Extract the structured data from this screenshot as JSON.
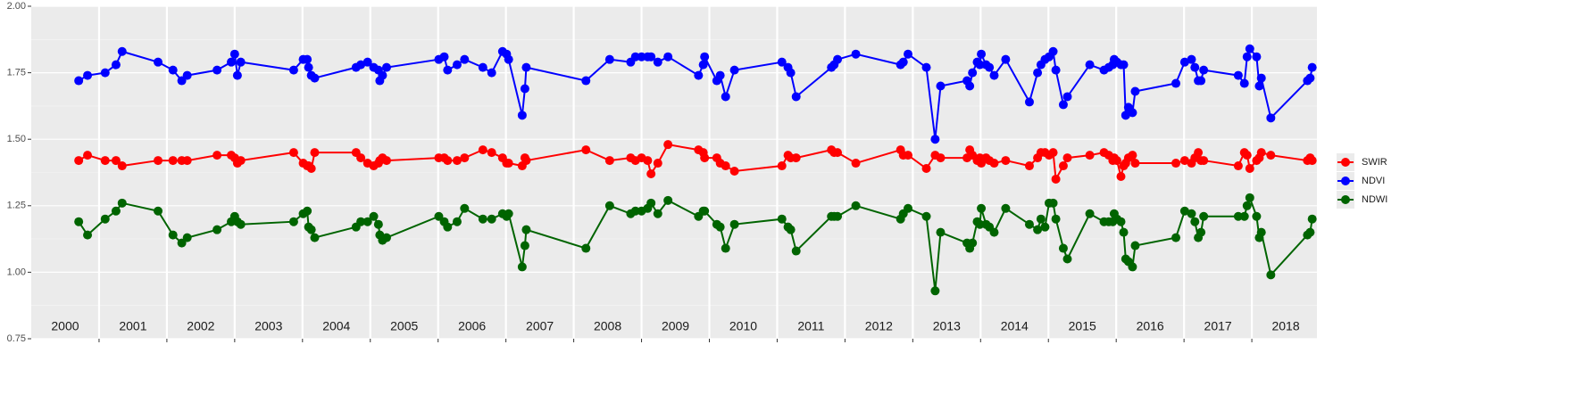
{
  "chart_data": {
    "type": "line",
    "x": [
      2000.7,
      2000.83,
      2001.09,
      2001.25,
      2001.34,
      2001.87,
      2002.09,
      2002.22,
      2002.3,
      2002.74,
      2002.95,
      2003.0,
      2003.04,
      2003.09,
      2003.87,
      2004.01,
      2004.07,
      2004.09,
      2004.13,
      2004.18,
      2004.79,
      2004.86,
      2004.96,
      2005.05,
      2005.12,
      2005.14,
      2005.18,
      2005.24,
      2006.01,
      2006.09,
      2006.14,
      2006.28,
      2006.39,
      2006.66,
      2006.79,
      2006.95,
      2007.01,
      2007.04,
      2007.24,
      2007.28,
      2007.3,
      2008.18,
      2008.53,
      2008.84,
      2008.91,
      2009.0,
      2009.09,
      2009.14,
      2009.24,
      2009.39,
      2009.84,
      2009.91,
      2009.93,
      2010.11,
      2010.16,
      2010.24,
      2010.37,
      2011.07,
      2011.16,
      2011.2,
      2011.28,
      2011.8,
      2011.84,
      2011.89,
      2012.16,
      2012.82,
      2012.86,
      2012.93,
      2013.2,
      2013.33,
      2013.41,
      2013.8,
      2013.84,
      2013.88,
      2013.95,
      2013.99,
      2014.01,
      2014.08,
      2014.13,
      2014.2,
      2014.37,
      2014.72,
      2014.84,
      2014.89,
      2014.95,
      2015.01,
      2015.07,
      2015.11,
      2015.22,
      2015.28,
      2015.61,
      2015.82,
      2015.89,
      2015.95,
      2015.97,
      2016.01,
      2016.07,
      2016.11,
      2016.14,
      2016.18,
      2016.24,
      2016.28,
      2016.88,
      2017.01,
      2017.11,
      2017.16,
      2017.21,
      2017.25,
      2017.29,
      2017.8,
      2017.89,
      2017.93,
      2017.97,
      2018.07,
      2018.11,
      2018.14,
      2018.28,
      2018.82,
      2018.86,
      2018.89
    ],
    "series": [
      {
        "name": "SWIR",
        "color": "#ff0000",
        "values": [
          1.42,
          1.44,
          1.42,
          1.42,
          1.4,
          1.42,
          1.42,
          1.42,
          1.42,
          1.44,
          1.44,
          1.43,
          1.41,
          1.42,
          1.45,
          1.41,
          1.4,
          1.4,
          1.39,
          1.45,
          1.45,
          1.43,
          1.41,
          1.4,
          1.41,
          1.42,
          1.43,
          1.42,
          1.43,
          1.43,
          1.42,
          1.42,
          1.43,
          1.46,
          1.45,
          1.43,
          1.41,
          1.41,
          1.4,
          1.43,
          1.42,
          1.46,
          1.42,
          1.43,
          1.42,
          1.43,
          1.42,
          1.37,
          1.41,
          1.48,
          1.46,
          1.45,
          1.43,
          1.43,
          1.41,
          1.4,
          1.38,
          1.4,
          1.44,
          1.43,
          1.43,
          1.46,
          1.45,
          1.45,
          1.41,
          1.46,
          1.44,
          1.44,
          1.39,
          1.44,
          1.43,
          1.43,
          1.46,
          1.44,
          1.42,
          1.43,
          1.41,
          1.43,
          1.42,
          1.41,
          1.42,
          1.4,
          1.43,
          1.45,
          1.45,
          1.44,
          1.45,
          1.35,
          1.4,
          1.43,
          1.44,
          1.45,
          1.44,
          1.42,
          1.43,
          1.42,
          1.36,
          1.4,
          1.41,
          1.43,
          1.44,
          1.41,
          1.41,
          1.42,
          1.41,
          1.43,
          1.45,
          1.42,
          1.42,
          1.4,
          1.45,
          1.44,
          1.39,
          1.42,
          1.43,
          1.45,
          1.44,
          1.42,
          1.43,
          1.42
        ]
      },
      {
        "name": "NDVI",
        "color": "#0000ff",
        "values": [
          1.72,
          1.74,
          1.75,
          1.78,
          1.83,
          1.79,
          1.76,
          1.72,
          1.74,
          1.76,
          1.79,
          1.82,
          1.74,
          1.79,
          1.76,
          1.8,
          1.8,
          1.77,
          1.74,
          1.73,
          1.77,
          1.78,
          1.79,
          1.77,
          1.76,
          1.72,
          1.74,
          1.77,
          1.8,
          1.81,
          1.76,
          1.78,
          1.8,
          1.77,
          1.75,
          1.83,
          1.82,
          1.8,
          1.59,
          1.69,
          1.77,
          1.72,
          1.8,
          1.79,
          1.81,
          1.81,
          1.81,
          1.81,
          1.79,
          1.81,
          1.74,
          1.78,
          1.81,
          1.72,
          1.74,
          1.66,
          1.76,
          1.79,
          1.77,
          1.75,
          1.66,
          1.77,
          1.78,
          1.8,
          1.82,
          1.78,
          1.79,
          1.82,
          1.77,
          1.5,
          1.7,
          1.72,
          1.7,
          1.75,
          1.79,
          1.78,
          1.82,
          1.78,
          1.77,
          1.74,
          1.8,
          1.64,
          1.75,
          1.78,
          1.8,
          1.81,
          1.83,
          1.76,
          1.63,
          1.66,
          1.78,
          1.76,
          1.77,
          1.78,
          1.8,
          1.79,
          1.78,
          1.78,
          1.59,
          1.62,
          1.6,
          1.68,
          1.71,
          1.79,
          1.8,
          1.77,
          1.72,
          1.72,
          1.76,
          1.74,
          1.71,
          1.81,
          1.84,
          1.81,
          1.7,
          1.73,
          1.58,
          1.72,
          1.73,
          1.77
        ]
      },
      {
        "name": "NDWI",
        "color": "#006400",
        "values": [
          1.19,
          1.14,
          1.2,
          1.23,
          1.26,
          1.23,
          1.14,
          1.11,
          1.13,
          1.16,
          1.19,
          1.21,
          1.19,
          1.18,
          1.19,
          1.22,
          1.23,
          1.17,
          1.16,
          1.13,
          1.17,
          1.19,
          1.19,
          1.21,
          1.18,
          1.14,
          1.12,
          1.13,
          1.21,
          1.19,
          1.17,
          1.19,
          1.24,
          1.2,
          1.2,
          1.22,
          1.21,
          1.22,
          1.02,
          1.1,
          1.16,
          1.09,
          1.25,
          1.22,
          1.23,
          1.23,
          1.24,
          1.26,
          1.22,
          1.27,
          1.21,
          1.23,
          1.23,
          1.18,
          1.17,
          1.09,
          1.18,
          1.2,
          1.17,
          1.16,
          1.08,
          1.21,
          1.21,
          1.21,
          1.25,
          1.2,
          1.22,
          1.24,
          1.21,
          0.93,
          1.15,
          1.11,
          1.09,
          1.11,
          1.19,
          1.18,
          1.24,
          1.18,
          1.17,
          1.15,
          1.24,
          1.18,
          1.16,
          1.2,
          1.17,
          1.26,
          1.26,
          1.2,
          1.09,
          1.05,
          1.22,
          1.19,
          1.19,
          1.19,
          1.22,
          1.2,
          1.19,
          1.15,
          1.05,
          1.04,
          1.02,
          1.1,
          1.13,
          1.23,
          1.22,
          1.19,
          1.13,
          1.15,
          1.21,
          1.21,
          1.21,
          1.25,
          1.28,
          1.21,
          1.13,
          1.15,
          0.99,
          1.14,
          1.15,
          1.2
        ]
      }
    ],
    "xlim": [
      2000,
      2018.96
    ],
    "x_gridlines": [
      2001,
      2002,
      2003,
      2004,
      2005,
      2006,
      2007,
      2008,
      2009,
      2010,
      2011,
      2012,
      2013,
      2014,
      2015,
      2016,
      2017,
      2018
    ],
    "year_labels": [
      "2000",
      "2001",
      "2002",
      "2003",
      "2004",
      "2005",
      "2006",
      "2007",
      "2008",
      "2009",
      "2010",
      "2011",
      "2012",
      "2013",
      "2014",
      "2015",
      "2016",
      "2017",
      "2018"
    ],
    "ylim": [
      0.75,
      2.0
    ],
    "yticks": [
      {
        "value": 0.75,
        "label": "0.75"
      },
      {
        "value": 1.0,
        "label": "1.00"
      },
      {
        "value": 1.25,
        "label": "1.25"
      },
      {
        "value": 1.5,
        "label": "1.50"
      },
      {
        "value": 1.75,
        "label": "1.75"
      },
      {
        "value": 2.0,
        "label": "2.00"
      }
    ],
    "grid": true,
    "legend": "right"
  }
}
